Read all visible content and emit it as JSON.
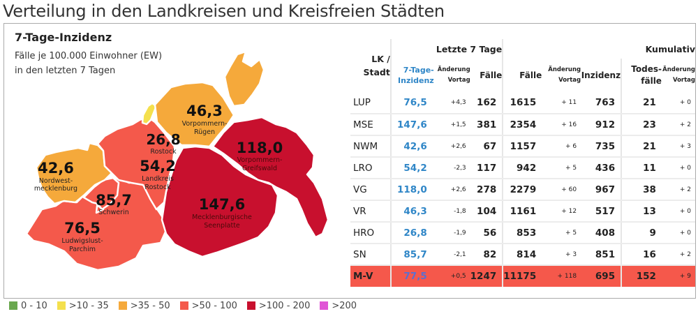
{
  "page": {
    "title": "Verteilung in den Landkreisen und Kreisfreien Städten"
  },
  "map": {
    "title": "7-Tage-Inzidenz",
    "subtitle_line1": "Fälle je 100.000 Einwohner (EW)",
    "subtitle_line2": "in den letzten 7 Tagen",
    "regions": [
      {
        "key": "NWM",
        "value": "42,6",
        "name1": "Nordwest-",
        "name2": "mecklenburg",
        "class": ">35 - 50"
      },
      {
        "key": "HRO",
        "value": "26,8",
        "name1": "Rostock",
        "name2": "",
        "class": ">10 - 35"
      },
      {
        "key": "LRO",
        "value": "54,2",
        "name1": "Landkreis",
        "name2": "Rostock",
        "class": ">50 - 100"
      },
      {
        "key": "VR",
        "value": "46,3",
        "name1": "Vorpommern-",
        "name2": "Rügen",
        "class": ">35 - 50"
      },
      {
        "key": "VG",
        "value": "118,0",
        "name1": "Vorpommern-",
        "name2": "Greifswald",
        "class": ">100 - 200"
      },
      {
        "key": "SN",
        "value": "85,7",
        "name1": "Schwerin",
        "name2": "",
        "class": ">50 - 100"
      },
      {
        "key": "MSE",
        "value": "147,6",
        "name1": "Mecklenburgische",
        "name2": "Seenplatte",
        "class": ">100 - 200"
      },
      {
        "key": "LUP",
        "value": "76,5",
        "name1": "Ludwigslust-",
        "name2": "Parchim",
        "class": ">50 - 100"
      }
    ]
  },
  "table": {
    "header": {
      "lk_line1": "LK /",
      "lk_line2": "Stadt",
      "group_last7": "Letzte 7 Tage",
      "group_cumulative": "Kumulativ",
      "inz_line1": "7-Tage-",
      "inz_line2": "Inzidenz",
      "chg_line1": "Änderung",
      "chg_line2": "Vortag",
      "faelle": "Fälle",
      "inzidenz": "Inzidenz",
      "todes_line1": "Todes-",
      "todes_line2": "fälle"
    },
    "rows": [
      {
        "lk": "LUP",
        "inz7": "76,5",
        "inz7_chg": "+4,3",
        "faelle7": "162",
        "faelle": "1615",
        "faelle_chg": "+ 11",
        "inzidenz": "763",
        "todesfaelle": "21",
        "todes_chg": "+ 0"
      },
      {
        "lk": "MSE",
        "inz7": "147,6",
        "inz7_chg": "+1,5",
        "faelle7": "381",
        "faelle": "2354",
        "faelle_chg": "+ 16",
        "inzidenz": "912",
        "todesfaelle": "23",
        "todes_chg": "+ 2"
      },
      {
        "lk": "NWM",
        "inz7": "42,6",
        "inz7_chg": "+2,6",
        "faelle7": "67",
        "faelle": "1157",
        "faelle_chg": "+ 6",
        "inzidenz": "735",
        "todesfaelle": "21",
        "todes_chg": "+ 3"
      },
      {
        "lk": "LRO",
        "inz7": "54,2",
        "inz7_chg": "-2,3",
        "faelle7": "117",
        "faelle": "942",
        "faelle_chg": "+ 5",
        "inzidenz": "436",
        "todesfaelle": "11",
        "todes_chg": "+ 0"
      },
      {
        "lk": "VG",
        "inz7": "118,0",
        "inz7_chg": "+2,6",
        "faelle7": "278",
        "faelle": "2279",
        "faelle_chg": "+ 60",
        "inzidenz": "967",
        "todesfaelle": "38",
        "todes_chg": "+ 2"
      },
      {
        "lk": "VR",
        "inz7": "46,3",
        "inz7_chg": "-1,8",
        "faelle7": "104",
        "faelle": "1161",
        "faelle_chg": "+ 12",
        "inzidenz": "517",
        "todesfaelle": "13",
        "todes_chg": "+ 0"
      },
      {
        "lk": "HRO",
        "inz7": "26,8",
        "inz7_chg": "-1,9",
        "faelle7": "56",
        "faelle": "853",
        "faelle_chg": "+ 5",
        "inzidenz": "408",
        "todesfaelle": "9",
        "todes_chg": "+ 0"
      },
      {
        "lk": "SN",
        "inz7": "85,7",
        "inz7_chg": "-2,1",
        "faelle7": "82",
        "faelle": "814",
        "faelle_chg": "+ 3",
        "inzidenz": "851",
        "todesfaelle": "16",
        "todes_chg": "+ 2"
      }
    ],
    "total": {
      "lk": "M-V",
      "inz7": "77,5",
      "inz7_chg": "+0,5",
      "faelle7": "1247",
      "faelle": "11175",
      "faelle_chg": "+ 118",
      "inzidenz": "695",
      "todesfaelle": "152",
      "todes_chg": "+ 9"
    }
  },
  "legend": [
    {
      "label": "0 - 10",
      "color": "#6aa84f"
    },
    {
      "label": ">10 - 35",
      "color": "#f4e04d"
    },
    {
      "label": ">35 - 50",
      "color": "#f5a93b"
    },
    {
      "label": ">50 - 100",
      "color": "#f4594b"
    },
    {
      "label": ">100 - 200",
      "color": "#c8102e"
    },
    {
      "label": ">200",
      "color": "#e055d6"
    }
  ],
  "colors": {
    "accent_blue": "#2f86c7",
    "total_row": "#f5584b",
    "orange": "#f5a93b",
    "light_red": "#f4594b",
    "dark_red": "#c8102e",
    "yellow": "#f4e04d"
  }
}
